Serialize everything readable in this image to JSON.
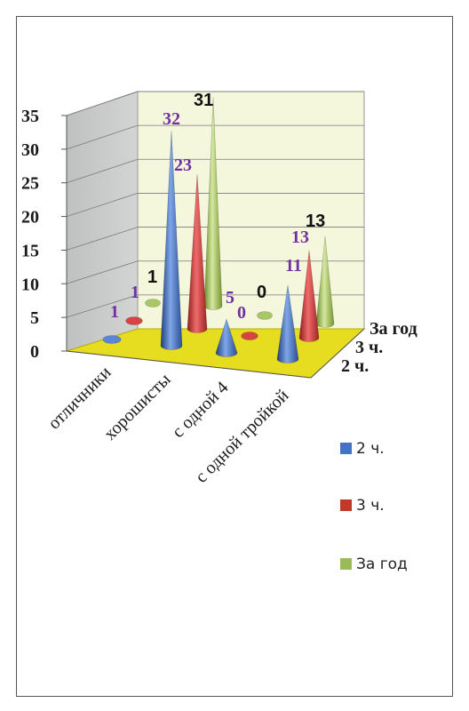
{
  "chart_data": {
    "type": "bar",
    "categories": [
      "отличники",
      "хорошисты",
      "с одной 4",
      "с одной тройкой"
    ],
    "series": [
      {
        "name": "2 ч.",
        "color": "#4472c4",
        "values": [
          1,
          32,
          5,
          11
        ]
      },
      {
        "name": "3 ч.",
        "color": "#c0392b",
        "values": [
          1,
          23,
          0,
          13
        ]
      },
      {
        "name": "За год",
        "color": "#9bbb59",
        "values": [
          1,
          31,
          0,
          13
        ]
      }
    ],
    "y_ticks": [
      "0",
      "5",
      "10",
      "15",
      "20",
      "25",
      "30",
      "35"
    ],
    "ylim": [
      0,
      35
    ],
    "depth_labels": [
      "2 ч.",
      "3 ч.",
      "За год"
    ],
    "legend": [
      "2 ч.",
      "3 ч.",
      "За год"
    ],
    "legend_position": "right",
    "grid": true,
    "shape": "cone",
    "floor_color": "#e6dc20",
    "wall_color": "#c4c6c6"
  }
}
